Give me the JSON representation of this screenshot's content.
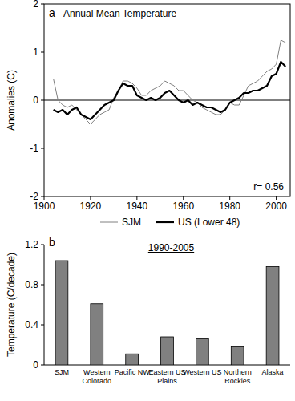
{
  "chart_data": [
    {
      "type": "line",
      "panel_label": "a",
      "title": "Annual Mean Temperature",
      "y_label": "Anomalies (C)",
      "annotation": "r= 0.56",
      "x": [
        1904,
        1906,
        1908,
        1910,
        1912,
        1914,
        1916,
        1918,
        1920,
        1922,
        1924,
        1926,
        1928,
        1930,
        1932,
        1934,
        1936,
        1938,
        1940,
        1942,
        1944,
        1946,
        1948,
        1950,
        1952,
        1954,
        1956,
        1958,
        1960,
        1962,
        1964,
        1966,
        1968,
        1970,
        1972,
        1974,
        1976,
        1978,
        1980,
        1982,
        1984,
        1986,
        1988,
        1990,
        1992,
        1994,
        1996,
        1998,
        2000,
        2002,
        2004
      ],
      "series": [
        {
          "name": "SJM",
          "color": "#808080",
          "values": [
            0.45,
            0.0,
            -0.1,
            -0.15,
            -0.1,
            -0.2,
            -0.3,
            -0.4,
            -0.5,
            -0.4,
            -0.3,
            -0.25,
            -0.2,
            0.05,
            0.2,
            0.4,
            0.4,
            0.35,
            0.25,
            0.1,
            0.1,
            0.2,
            0.25,
            0.3,
            0.4,
            0.35,
            0.3,
            0.2,
            0.2,
            0.1,
            0.0,
            -0.05,
            -0.15,
            -0.2,
            -0.25,
            -0.3,
            -0.3,
            -0.2,
            -0.05,
            -0.1,
            -0.1,
            0.1,
            0.3,
            0.35,
            0.4,
            0.5,
            0.6,
            0.65,
            0.75,
            1.25,
            1.2
          ]
        },
        {
          "name": "US (Lower 48)",
          "color": "#000000",
          "values": [
            -0.2,
            -0.25,
            -0.2,
            -0.3,
            -0.2,
            -0.15,
            -0.3,
            -0.35,
            -0.4,
            -0.3,
            -0.2,
            -0.1,
            -0.05,
            0.0,
            0.2,
            0.35,
            0.3,
            0.3,
            0.1,
            0.05,
            0.0,
            0.05,
            0.0,
            0.05,
            0.15,
            0.2,
            0.1,
            0.0,
            -0.05,
            0.0,
            -0.1,
            -0.05,
            -0.1,
            -0.15,
            -0.15,
            -0.2,
            -0.25,
            -0.2,
            -0.05,
            0.0,
            0.05,
            0.15,
            0.15,
            0.2,
            0.2,
            0.25,
            0.3,
            0.5,
            0.55,
            0.8,
            0.7
          ]
        }
      ],
      "xlim": [
        1900,
        2006
      ],
      "xticks": [
        1900,
        1920,
        1940,
        1960,
        1980,
        2000
      ],
      "ylim": [
        -2,
        2
      ],
      "yticks": [
        -2,
        -1,
        0,
        1,
        2
      ],
      "legend": "bottom",
      "grid": false
    },
    {
      "type": "bar",
      "panel_label": "b",
      "title": "1990-2005",
      "y_label": "Temperature (C/decade)",
      "categories": [
        "SJM",
        "Western Colorado",
        "Pacific NW",
        "Eastern US Plains",
        "Western US",
        "Northern Rockies",
        "Alaska"
      ],
      "values": [
        1.04,
        0.61,
        0.11,
        0.28,
        0.26,
        0.18,
        0.98
      ],
      "color": "#808080",
      "ylim": [
        0,
        1.2
      ],
      "yticks": [
        0,
        0.4,
        0.8,
        1.2
      ],
      "grid": false
    }
  ]
}
